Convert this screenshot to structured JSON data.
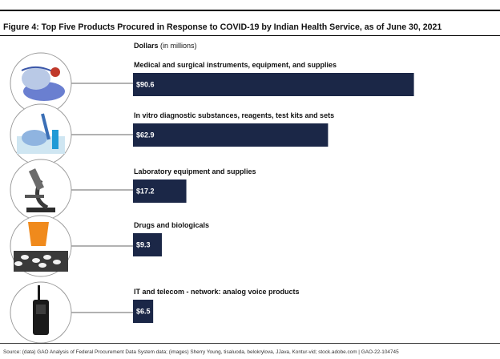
{
  "figure": {
    "title": "Figure 4: Top Five Products Procured in Response to COVID-19 by Indian Health Service, as of June 30, 2021",
    "units_strong": "Dollars",
    "units_rest": " (in millions)",
    "source": "Source: (data) GAO Analysis of Federal Procurement Data System data; (images) Sherry Young, tisaluoda, belokrylova, JJava, Kontur-vid; stock.adobe.com  |  GAO-22-104745"
  },
  "chart_data": {
    "type": "bar",
    "orientation": "horizontal",
    "categories": [
      "Medical and surgical instruments, equipment, and supplies",
      "In vitro diagnostic substances, reagents, test kits and sets",
      "Laboratory equipment and supplies",
      "Drugs and biologicals",
      "IT and telecom - network: analog voice products"
    ],
    "values": [
      90.6,
      62.9,
      17.2,
      9.3,
      6.5
    ],
    "value_labels": [
      "$90.6",
      "$62.9",
      "$17.2",
      "$9.3",
      "$6.5"
    ],
    "icons": [
      "surgical-supplies-icon",
      "test-kit-icon",
      "microscope-icon",
      "pills-icon",
      "radio-icon"
    ],
    "bar_color": "#1b2747",
    "xlim": [
      0,
      92
    ],
    "grid": false,
    "legend": "none"
  }
}
